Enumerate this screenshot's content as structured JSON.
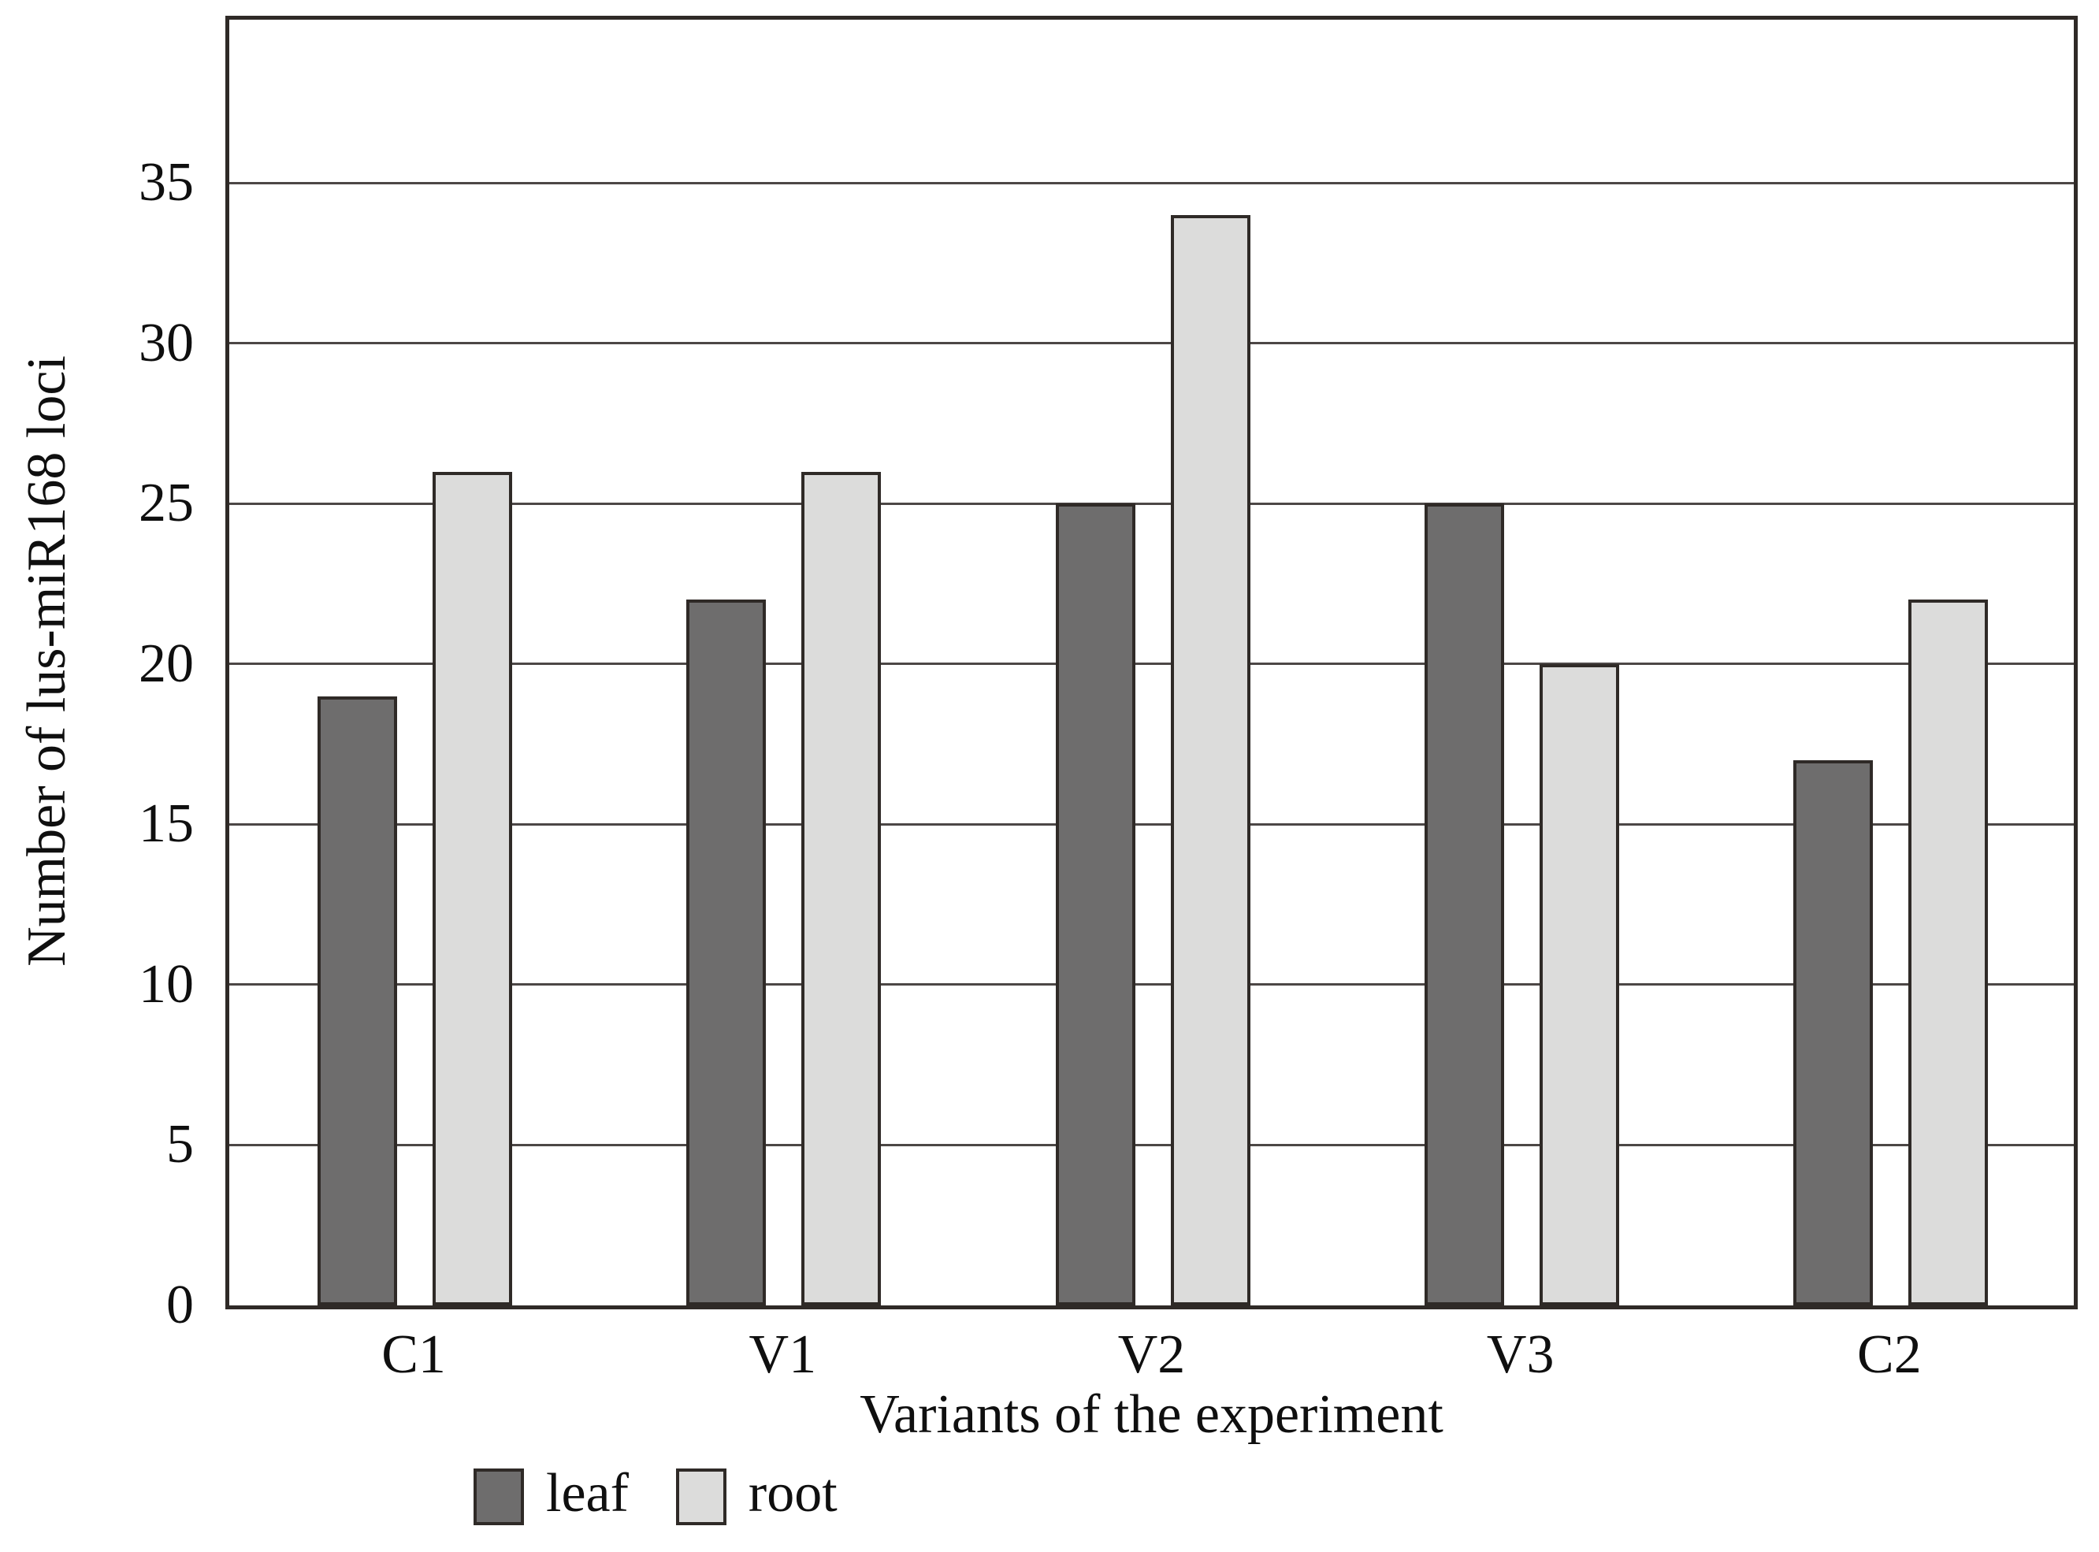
{
  "chart_data": {
    "type": "bar",
    "title": "",
    "categories": [
      "C1",
      "V1",
      "V2",
      "V3",
      "C2"
    ],
    "series": [
      {
        "name": "leaf",
        "color": "#6e6d6d",
        "values": [
          19,
          22,
          25,
          25,
          17
        ]
      },
      {
        "name": "root",
        "color": "#dcdcdb",
        "values": [
          26,
          26,
          34,
          20,
          22
        ]
      }
    ],
    "xlabel": "Variants of the experiment",
    "ylabel": "Number of lus-miR168 loci",
    "ylim": [
      0,
      40
    ],
    "yticks": [
      "0",
      "5",
      "10",
      "15",
      "20",
      "25",
      "30",
      "35"
    ],
    "grid": true,
    "legend_position": "bottom-left",
    "colors": {
      "axis": "#2f2a27",
      "bar_border": "#2f2a27",
      "gridline": "#4c4746",
      "text": "#0f0f0f",
      "background": "#ffffff"
    }
  }
}
